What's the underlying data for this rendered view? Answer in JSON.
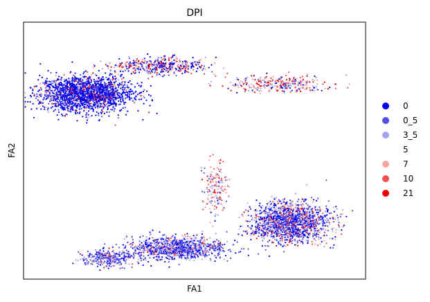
{
  "chart_data": {
    "type": "scatter",
    "title": "DPI",
    "xlabel": "FA1",
    "ylabel": "FA2",
    "ticks_shown": false,
    "grid": false,
    "legend_placement": "right",
    "categories": [
      "0",
      "0_5",
      "3_5",
      "5",
      "7",
      "10",
      "21"
    ],
    "colors": {
      "0": "#0000ee",
      "0_5": "#4f4fe8",
      "3_5": "#a3a3f0",
      "5": "#ffffff",
      "7": "#f4a3a3",
      "10": "#ef4f4f",
      "21": "#ee0000"
    },
    "clusters": [
      {
        "name": "upper-left blob",
        "center": [
          0.18,
          0.72
        ],
        "spread": [
          0.12,
          0.06
        ],
        "count": 2200,
        "weights": [
          0.62,
          0.16,
          0.06,
          0.04,
          0.04,
          0.04,
          0.04
        ]
      },
      {
        "name": "upper-mid band",
        "center": [
          0.4,
          0.83
        ],
        "spread": [
          0.12,
          0.03
        ],
        "count": 450,
        "weights": [
          0.3,
          0.12,
          0.12,
          0.08,
          0.14,
          0.12,
          0.12
        ]
      },
      {
        "name": "upper-right band",
        "center": [
          0.75,
          0.76
        ],
        "spread": [
          0.14,
          0.03
        ],
        "count": 380,
        "weights": [
          0.1,
          0.1,
          0.22,
          0.14,
          0.14,
          0.12,
          0.18
        ]
      },
      {
        "name": "lower-right blob",
        "center": [
          0.78,
          0.22
        ],
        "spread": [
          0.1,
          0.07
        ],
        "count": 1700,
        "weights": [
          0.32,
          0.26,
          0.14,
          0.06,
          0.1,
          0.08,
          0.04
        ]
      },
      {
        "name": "lower-mid band",
        "center": [
          0.45,
          0.12
        ],
        "spread": [
          0.13,
          0.04
        ],
        "count": 1100,
        "weights": [
          0.26,
          0.36,
          0.16,
          0.06,
          0.09,
          0.05,
          0.02
        ]
      },
      {
        "name": "lower-left tail",
        "center": [
          0.25,
          0.08
        ],
        "spread": [
          0.07,
          0.03
        ],
        "count": 350,
        "weights": [
          0.26,
          0.34,
          0.2,
          0.06,
          0.08,
          0.04,
          0.02
        ]
      },
      {
        "name": "middle stalk",
        "center": [
          0.56,
          0.36
        ],
        "spread": [
          0.03,
          0.1
        ],
        "count": 200,
        "weights": [
          0.06,
          0.1,
          0.18,
          0.16,
          0.32,
          0.12,
          0.06
        ]
      }
    ]
  }
}
